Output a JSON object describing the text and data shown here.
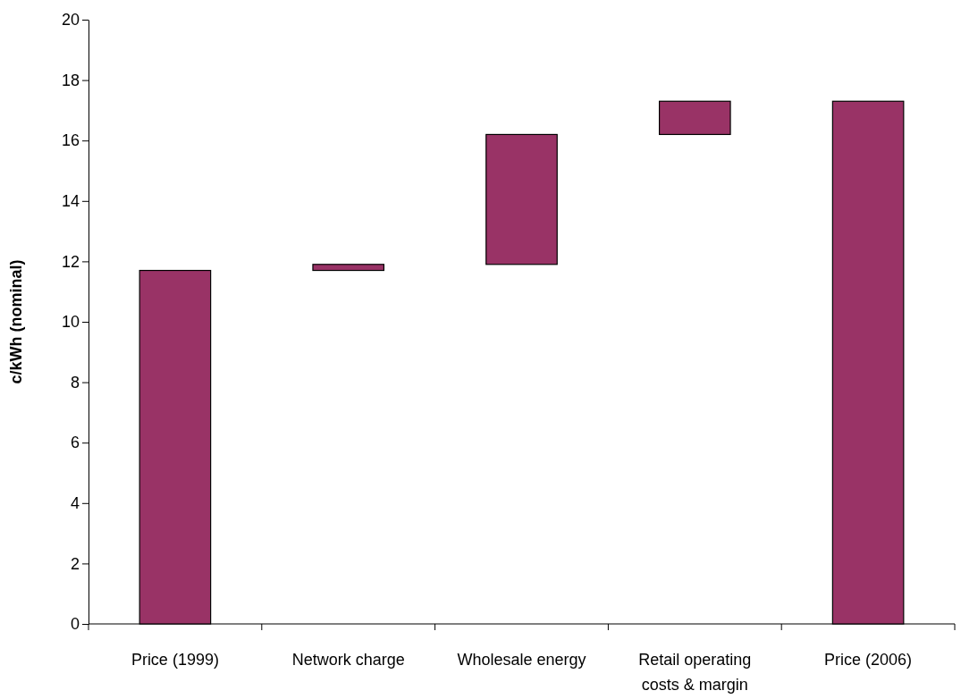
{
  "chart_data": {
    "type": "bar",
    "ylabel": "c/kWh (nominal)",
    "categories": [
      "Price (1999)",
      "Network charge",
      "Wholesale energy",
      "Retail operating costs & margin",
      "Price (2006)"
    ],
    "values": [
      11.7,
      0.2,
      4.3,
      1.1,
      17.3
    ],
    "base": [
      0,
      11.7,
      11.9,
      16.2,
      0
    ],
    "color": "#993366",
    "ylim": [
      0,
      20
    ],
    "yticks": [
      0,
      2,
      4,
      6,
      8,
      10,
      12,
      14,
      16,
      18,
      20
    ],
    "grid": false
  }
}
